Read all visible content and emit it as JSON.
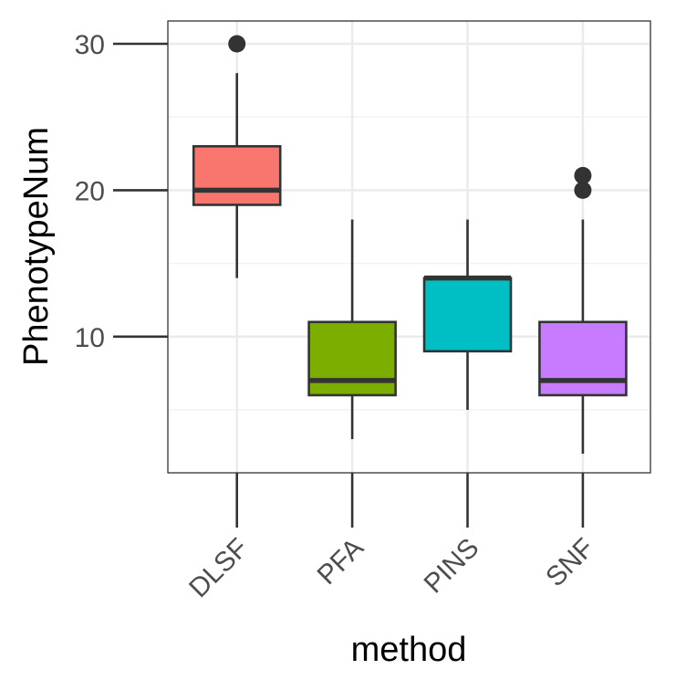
{
  "chart_data": {
    "type": "boxplot",
    "title": "",
    "xlabel": "method",
    "ylabel": "PhenotypeNum",
    "ylim": [
      0,
      31.5
    ],
    "yticks": [
      10,
      20,
      30
    ],
    "grid": true,
    "legend": "none",
    "categories": [
      "DLSF",
      "PFA",
      "PINS",
      "SNF"
    ],
    "boxes": [
      {
        "category": "DLSF",
        "min": 14,
        "q1": 19,
        "median": 20,
        "q3": 23,
        "max": 28,
        "outliers": [
          30
        ],
        "color": "#F8766D"
      },
      {
        "category": "PFA",
        "min": 3,
        "q1": 6,
        "median": 7,
        "q3": 11,
        "max": 18,
        "outliers": [],
        "color": "#7CAE00"
      },
      {
        "category": "PINS",
        "min": 5,
        "q1": 9,
        "median": 14,
        "q3": 14,
        "max": 18,
        "outliers": [],
        "color": "#00BFC4"
      },
      {
        "category": "SNF",
        "min": 2,
        "q1": 6,
        "median": 7,
        "q3": 11,
        "max": 18,
        "outliers": [
          20,
          21
        ],
        "color": "#C77CFF"
      }
    ]
  }
}
